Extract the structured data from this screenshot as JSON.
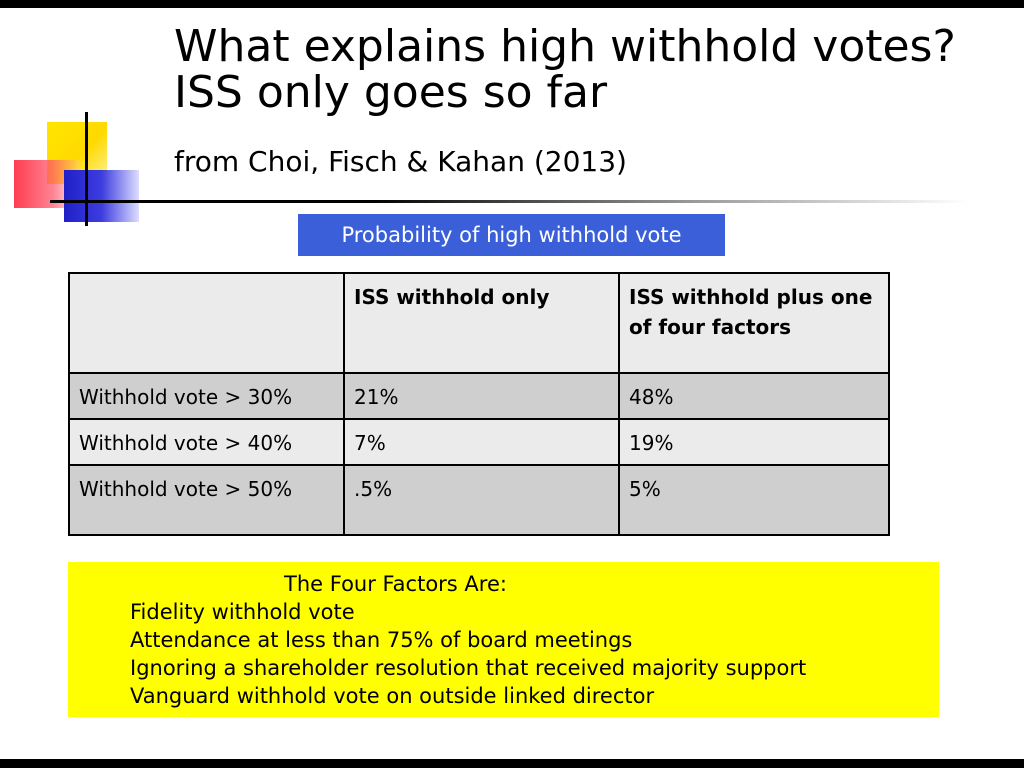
{
  "title_lines": [
    "What explains high withhold votes?",
    "ISS only goes so far"
  ],
  "subtitle": "from Choi, Fisch & Kahan (2013)",
  "caption": "Probability of high withhold vote",
  "table": {
    "headers": [
      "",
      "ISS withhold only",
      "ISS withhold plus one of four factors"
    ],
    "rows": [
      [
        "Withhold vote > 30%",
        "21%",
        "48%"
      ],
      [
        "Withhold vote > 40%",
        "7%",
        "19%"
      ],
      [
        "Withhold vote > 50%",
        ".5%",
        "5%"
      ]
    ]
  },
  "factors": {
    "heading": "The Four Factors Are:",
    "items": [
      "Fidelity withhold vote",
      "Attendance at less than 75% of board meetings",
      "Ignoring a shareholder resolution that received majority support",
      "Vanguard withhold vote on outside linked director"
    ]
  },
  "colors": {
    "caption_background": "#3a5fd9",
    "factors_background": "#ffff00",
    "header_row_background": "#ebebeb",
    "dark_row_background": "#cfcfcf"
  }
}
